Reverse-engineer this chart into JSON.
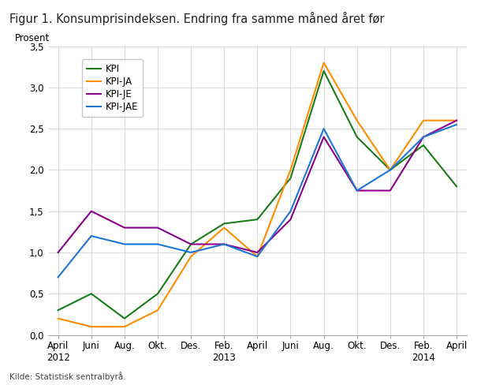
{
  "title": "Figur 1. Konsumprisindeksen. Endring fra samme måned året før",
  "ylabel": "Prosent",
  "source": "Kilde: Statistisk sentralbyrå.",
  "ylim": [
    0.0,
    3.5
  ],
  "yticks": [
    0.0,
    0.5,
    1.0,
    1.5,
    2.0,
    2.5,
    3.0,
    3.5
  ],
  "ytick_labels": [
    "0,0",
    "0,5",
    "1,0",
    "1,5",
    "2,0",
    "2,5",
    "3,0",
    "3,5"
  ],
  "xtick_labels": [
    "April\n2012",
    "Juni",
    "Aug.",
    "Okt.",
    "Des.",
    "Feb.\n2013",
    "April",
    "Juni",
    "Aug.",
    "Okt.",
    "Des.",
    "Feb.\n2014",
    "April"
  ],
  "series": {
    "KPI": {
      "color": "#1a7c1a",
      "values": [
        0.3,
        0.5,
        0.2,
        0.5,
        1.1,
        1.35,
        1.4,
        1.9,
        3.2,
        2.4,
        2.0,
        2.3,
        1.8
      ]
    },
    "KPI-JA": {
      "color": "#ff8c00",
      "values": [
        0.2,
        0.1,
        0.1,
        0.3,
        0.95,
        1.3,
        0.95,
        2.0,
        3.3,
        2.6,
        2.0,
        2.6,
        2.6
      ]
    },
    "KPI-JE": {
      "color": "#8b008b",
      "values": [
        1.0,
        1.5,
        1.3,
        1.3,
        1.1,
        1.1,
        1.0,
        1.4,
        2.4,
        1.75,
        1.75,
        2.4,
        2.6
      ]
    },
    "KPI-JAE": {
      "color": "#1e74d7",
      "values": [
        0.7,
        1.2,
        1.1,
        1.1,
        1.0,
        1.1,
        0.95,
        1.5,
        2.5,
        1.75,
        2.0,
        2.4,
        2.55
      ]
    }
  },
  "legend_order": [
    "KPI",
    "KPI-JA",
    "KPI-JE",
    "KPI-JAE"
  ],
  "background_color": "#ffffff",
  "grid_color": "#cccccc",
  "figsize": [
    6.1,
    4.88
  ],
  "dpi": 100
}
